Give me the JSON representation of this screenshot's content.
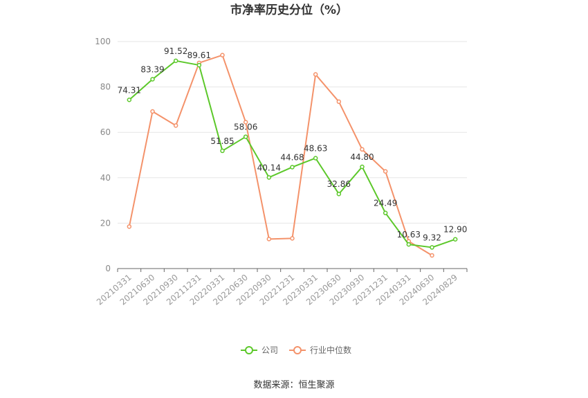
{
  "chart_data": {
    "type": "line",
    "title": "市净率历史分位（%）",
    "x": [
      "20210331",
      "20210630",
      "20210930",
      "20211231",
      "20220331",
      "20220630",
      "20220930",
      "20221231",
      "20230331",
      "20230630",
      "20230930",
      "20231231",
      "20240331",
      "20240630",
      "20240829"
    ],
    "ylim": [
      0,
      100
    ],
    "yticks": [
      0,
      20,
      40,
      60,
      80,
      100
    ],
    "grid": true,
    "legend_position": "bottom",
    "series": [
      {
        "name": "公司",
        "color": "#5cc82a",
        "values": [
          74.31,
          83.39,
          91.52,
          89.61,
          51.85,
          58.06,
          40.14,
          44.68,
          48.63,
          32.86,
          44.8,
          24.49,
          10.63,
          9.32,
          12.9
        ],
        "labels": [
          "74.31",
          "83.39",
          "91.52",
          "89.61",
          "51.85",
          "58.06",
          "40.14",
          "44.68",
          "48.63",
          "32.86",
          "44.80",
          "24.49",
          "10.63",
          "9.32",
          "12.90"
        ]
      },
      {
        "name": "行业中位数",
        "color": "#f4926a",
        "values": [
          18.5,
          69.2,
          63.0,
          90.6,
          94.0,
          64.5,
          13.0,
          13.3,
          85.5,
          73.5,
          52.5,
          42.8,
          12.0,
          5.8,
          null
        ]
      }
    ]
  },
  "source_text": "数据来源：恒生聚源"
}
